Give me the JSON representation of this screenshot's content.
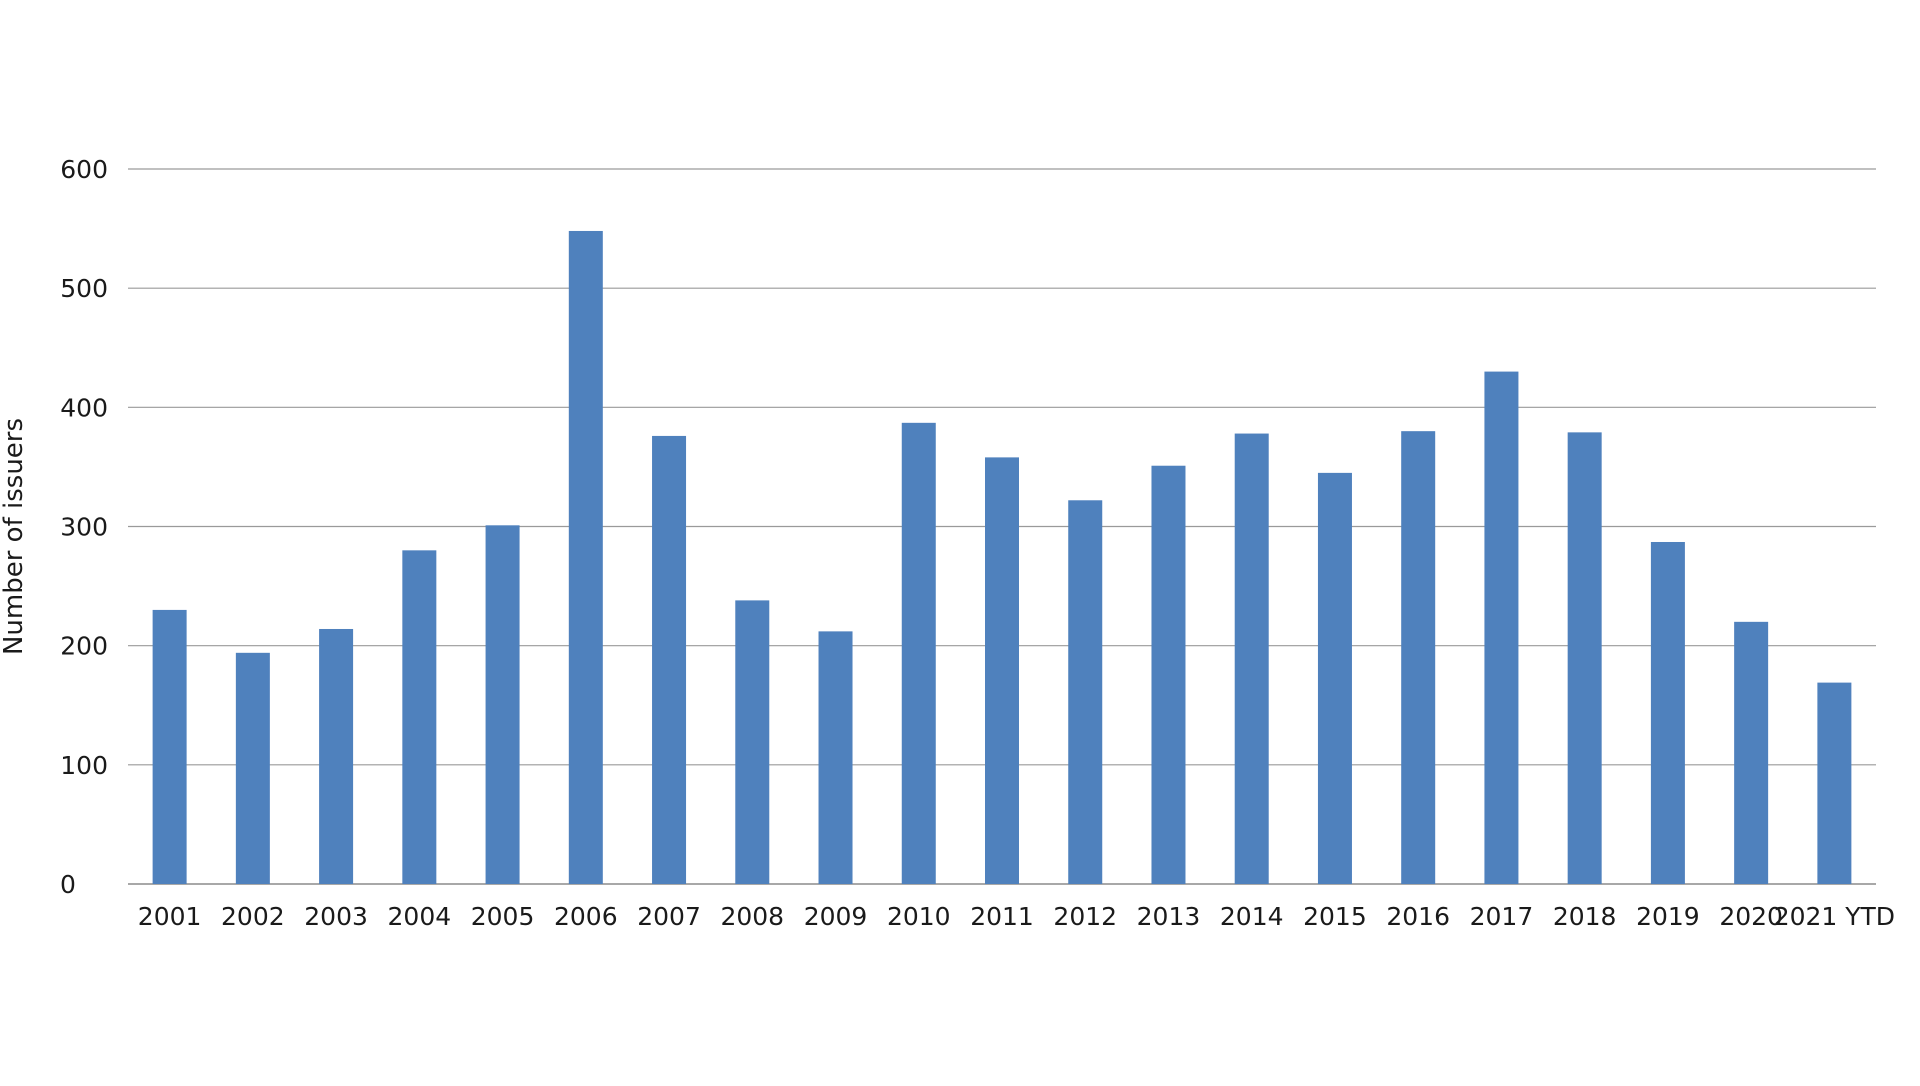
{
  "chart_data": {
    "type": "bar",
    "title": "",
    "xlabel": "",
    "ylabel": "Number of issuers",
    "ylim": [
      0,
      600
    ],
    "yticks": [
      "0",
      "100",
      "200",
      "300",
      "400",
      "500",
      "600"
    ],
    "grid": true,
    "legend": "none",
    "categories": [
      "2001",
      "2002",
      "2003",
      "2004",
      "2005",
      "2006",
      "2007",
      "2008",
      "2009",
      "2010",
      "2011",
      "2012",
      "2013",
      "2014",
      "2015",
      "2016",
      "2017",
      "2018",
      "2019",
      "2020",
      "2021 YTD"
    ],
    "series": [
      {
        "values": [
          230,
          194,
          214,
          280,
          301,
          548,
          376,
          238,
          212,
          387,
          358,
          322,
          351,
          378,
          345,
          380,
          430,
          379,
          287,
          220,
          169
        ]
      }
    ],
    "colors": {
      "bar": "#4f81bd",
      "grid": "#9a9a9a",
      "axis": "#8c8c8c"
    }
  }
}
